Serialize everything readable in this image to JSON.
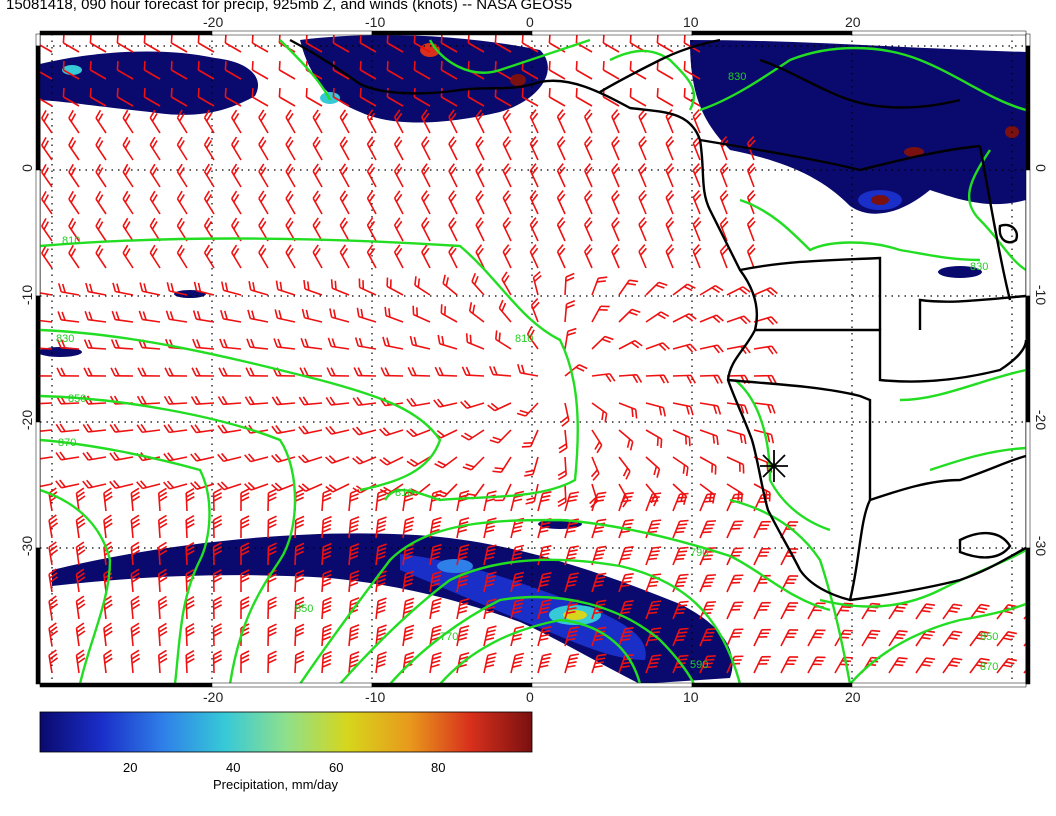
{
  "title": "15081418, 090 hour forecast for precip, 925mb Z, and winds (knots) -- NASA GEOS5",
  "map": {
    "lon_ticks": [
      "-20",
      "-10",
      "0",
      "10",
      "20"
    ],
    "lat_ticks": [
      "0",
      "-10",
      "-20",
      "-30"
    ],
    "contour_color": "#22dd22",
    "barb_color": "#ee1111",
    "coast_color": "#000000",
    "contour_labels": [
      "810",
      "830",
      "850",
      "870",
      "810",
      "850",
      "790",
      "810",
      "770",
      "590",
      "830",
      "850",
      "870",
      "830"
    ]
  },
  "colorbar": {
    "label": "Precipitation, mm/day",
    "ticks": [
      "20",
      "40",
      "60",
      "80"
    ],
    "colors": [
      "#0a0a6e",
      "#1a2ec8",
      "#2f7fe8",
      "#36c9d8",
      "#8ee08c",
      "#d6d61c",
      "#e89a1c",
      "#d8301c",
      "#7a1010"
    ]
  }
}
